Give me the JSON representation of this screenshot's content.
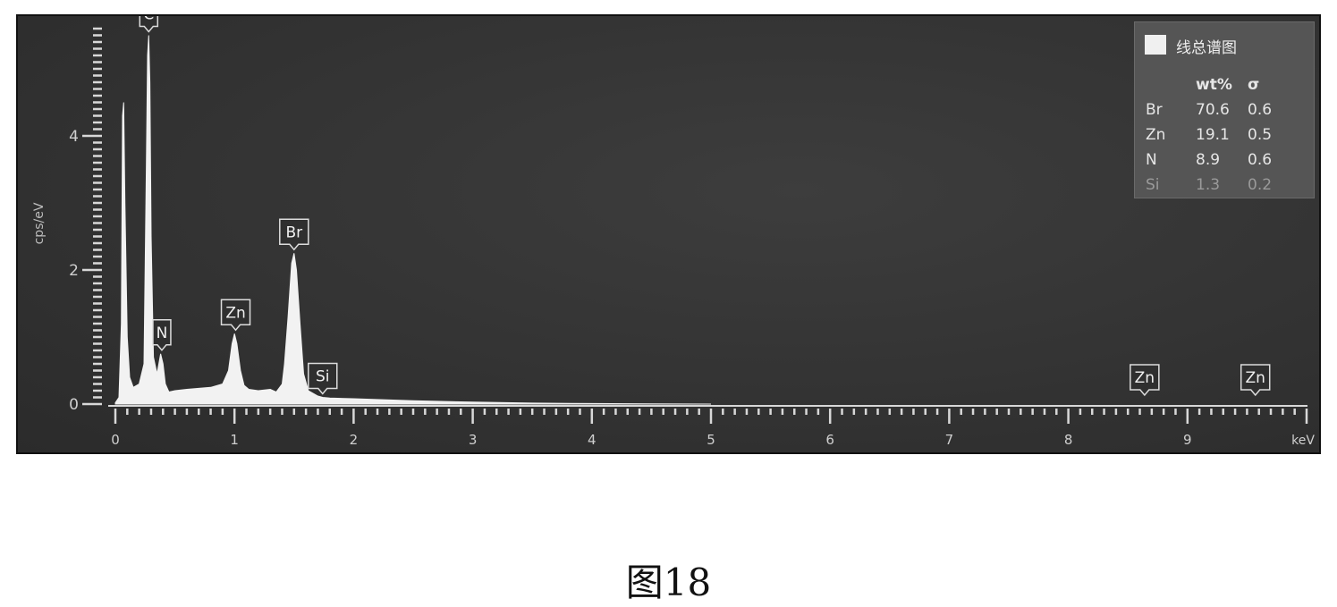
{
  "chart_data": {
    "type": "line",
    "ylabel": "cps/eV",
    "xunit": "keV",
    "xlim": [
      0,
      10
    ],
    "ylim": [
      0,
      5.6
    ],
    "x_ticks": [
      "0",
      "1",
      "2",
      "3",
      "4",
      "5",
      "6",
      "7",
      "8",
      "9"
    ],
    "y_ticks": [
      "0",
      "2",
      "4"
    ],
    "spectrum": {
      "x": [
        0.0,
        0.03,
        0.05,
        0.06,
        0.07,
        0.08,
        0.1,
        0.12,
        0.15,
        0.2,
        0.24,
        0.26,
        0.27,
        0.28,
        0.29,
        0.3,
        0.32,
        0.35,
        0.38,
        0.4,
        0.42,
        0.45,
        0.5,
        0.6,
        0.8,
        0.9,
        0.95,
        0.98,
        1.0,
        1.02,
        1.05,
        1.08,
        1.12,
        1.2,
        1.3,
        1.35,
        1.4,
        1.42,
        1.45,
        1.48,
        1.5,
        1.52,
        1.55,
        1.58,
        1.62,
        1.7,
        1.74,
        1.8,
        2.0,
        2.5,
        3.0,
        3.5,
        4.0,
        4.5,
        5.0
      ],
      "y": [
        0.02,
        0.1,
        1.2,
        4.3,
        4.5,
        3.0,
        1.0,
        0.4,
        0.25,
        0.3,
        0.6,
        3.5,
        5.2,
        5.5,
        4.8,
        2.5,
        0.7,
        0.45,
        0.75,
        0.6,
        0.3,
        0.18,
        0.2,
        0.22,
        0.25,
        0.3,
        0.5,
        0.9,
        1.05,
        0.9,
        0.5,
        0.28,
        0.22,
        0.2,
        0.22,
        0.18,
        0.3,
        0.6,
        1.3,
        2.1,
        2.25,
        2.0,
        1.2,
        0.45,
        0.2,
        0.12,
        0.1,
        0.09,
        0.08,
        0.05,
        0.03,
        0.015,
        0.008,
        0.004,
        0.0
      ]
    },
    "peak_labels": [
      {
        "label": "C",
        "x": 0.28,
        "y": 5.5
      },
      {
        "label": "N",
        "x": 0.39,
        "y": 0.75
      },
      {
        "label": "Zn",
        "x": 1.01,
        "y": 1.05
      },
      {
        "label": "Br",
        "x": 1.5,
        "y": 2.25
      },
      {
        "label": "Si",
        "x": 1.74,
        "y": 0.1
      },
      {
        "label": "Zn",
        "x": 8.64,
        "y": 0.0
      },
      {
        "label": "Zn",
        "x": 9.57,
        "y": 0.0
      }
    ],
    "legend": {
      "title": "线总谱图",
      "headers": [
        "",
        "wt%",
        "σ"
      ],
      "rows": [
        {
          "element": "Br",
          "wt": "70.6",
          "sigma": "0.6"
        },
        {
          "element": "Zn",
          "wt": "19.1",
          "sigma": "0.5"
        },
        {
          "element": "N",
          "wt": "8.9",
          "sigma": "0.6"
        },
        {
          "element": "Si",
          "wt": "1.3",
          "sigma": "0.2"
        }
      ]
    },
    "colors": {
      "background": "#333333",
      "spectrum": "#f2f2f2",
      "axis": "#d8d8d8",
      "label_box": "#2f2f2f"
    }
  },
  "caption": "图18"
}
